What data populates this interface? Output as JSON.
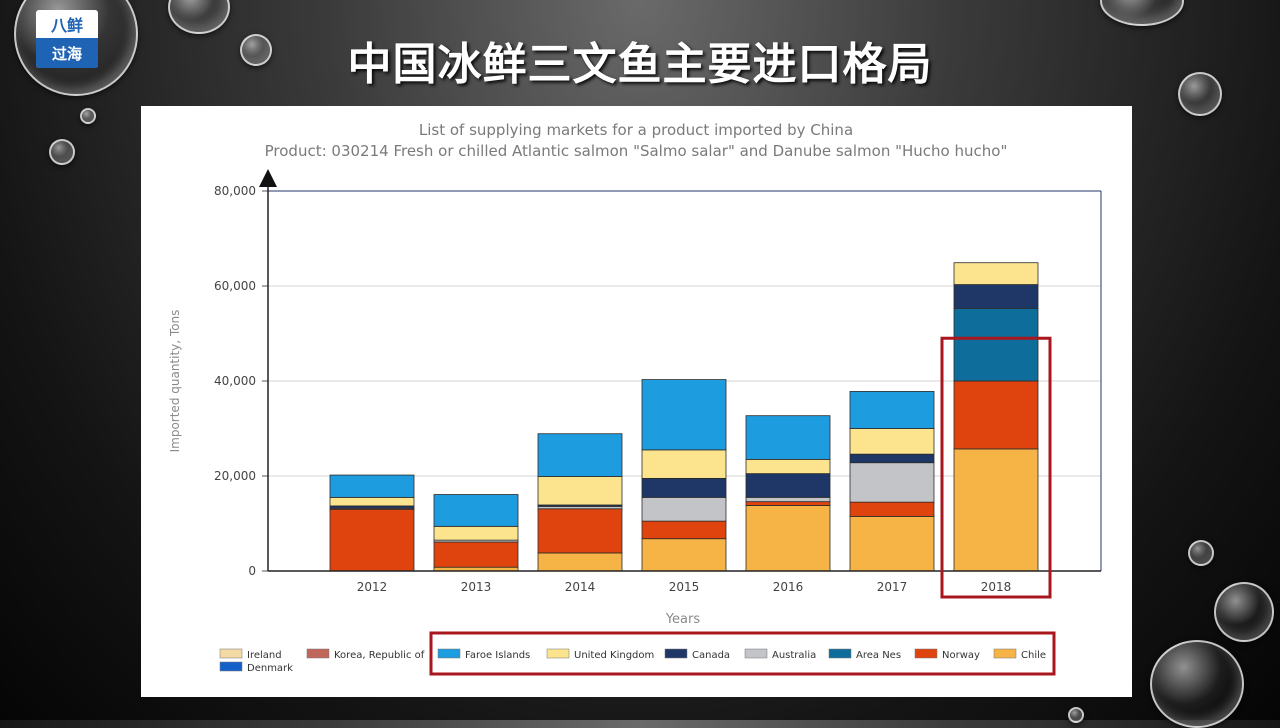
{
  "slide": {
    "title": "中国冰鲜三文鱼主要进口格局",
    "logo": {
      "top_text": "八鲜",
      "bottom_text": "过海"
    }
  },
  "chart_data": {
    "type": "bar",
    "stacked": true,
    "title": "List of supplying markets for a product imported by China",
    "subtitle": "Product: 030214 Fresh or chilled Atlantic salmon \"Salmo salar\" and Danube salmon \"Hucho hucho\"",
    "xlabel": "Years",
    "ylabel": "Imported quantity, Tons",
    "ylim": [
      0,
      80000
    ],
    "yticks": [
      0,
      20000,
      40000,
      60000,
      80000
    ],
    "ytick_labels": [
      "0",
      "20,000",
      "40,000",
      "60,000",
      "80,000"
    ],
    "categories": [
      "2012",
      "2013",
      "2014",
      "2015",
      "2016",
      "2017",
      "2018"
    ],
    "grid": true,
    "legend_position": "bottom",
    "series": [
      {
        "name": "Chile",
        "color": "#f7b446",
        "values": [
          0,
          800,
          3800,
          6800,
          13800,
          11500,
          25700
        ]
      },
      {
        "name": "Norway",
        "color": "#e0440e",
        "values": [
          13000,
          5300,
          9300,
          3700,
          800,
          3000,
          14300
        ]
      },
      {
        "name": "Area Nes",
        "color": "#0f6d9c",
        "values": [
          0,
          0,
          0,
          0,
          0,
          0,
          15300
        ]
      },
      {
        "name": "Australia",
        "color": "#c3c4c8",
        "values": [
          200,
          400,
          500,
          5000,
          900,
          8300,
          0
        ]
      },
      {
        "name": "Canada",
        "color": "#1e3767",
        "values": [
          500,
          0,
          300,
          4000,
          5000,
          1800,
          5000
        ]
      },
      {
        "name": "United Kingdom",
        "color": "#fce48f",
        "values": [
          1800,
          2900,
          6000,
          6000,
          3000,
          5400,
          4600
        ]
      },
      {
        "name": "Faroe Islands",
        "color": "#1d9ce0",
        "values": [
          4700,
          6700,
          9000,
          14800,
          9200,
          7800,
          0
        ]
      },
      {
        "name": "Korea, Republic of",
        "color": "#c0665a",
        "values": [
          0,
          0,
          0,
          0,
          0,
          0,
          0
        ]
      },
      {
        "name": "Ireland",
        "color": "#f3d9a3",
        "values": [
          0,
          0,
          0,
          0,
          0,
          0,
          0
        ]
      },
      {
        "name": "Denmark",
        "color": "#1560c8",
        "values": [
          0,
          0,
          0,
          0,
          0,
          0,
          0
        ]
      }
    ],
    "legend_order": [
      "Ireland",
      "Korea, Republic of",
      "Faroe Islands",
      "United Kingdom",
      "Canada",
      "Australia",
      "Area Nes",
      "Norway",
      "Chile",
      "Denmark"
    ],
    "highlights": [
      {
        "target": "category",
        "category": "2018",
        "color": "#a8161e"
      },
      {
        "target": "legend",
        "from": "Faroe Islands",
        "to": "Chile",
        "color": "#a8161e"
      }
    ]
  }
}
